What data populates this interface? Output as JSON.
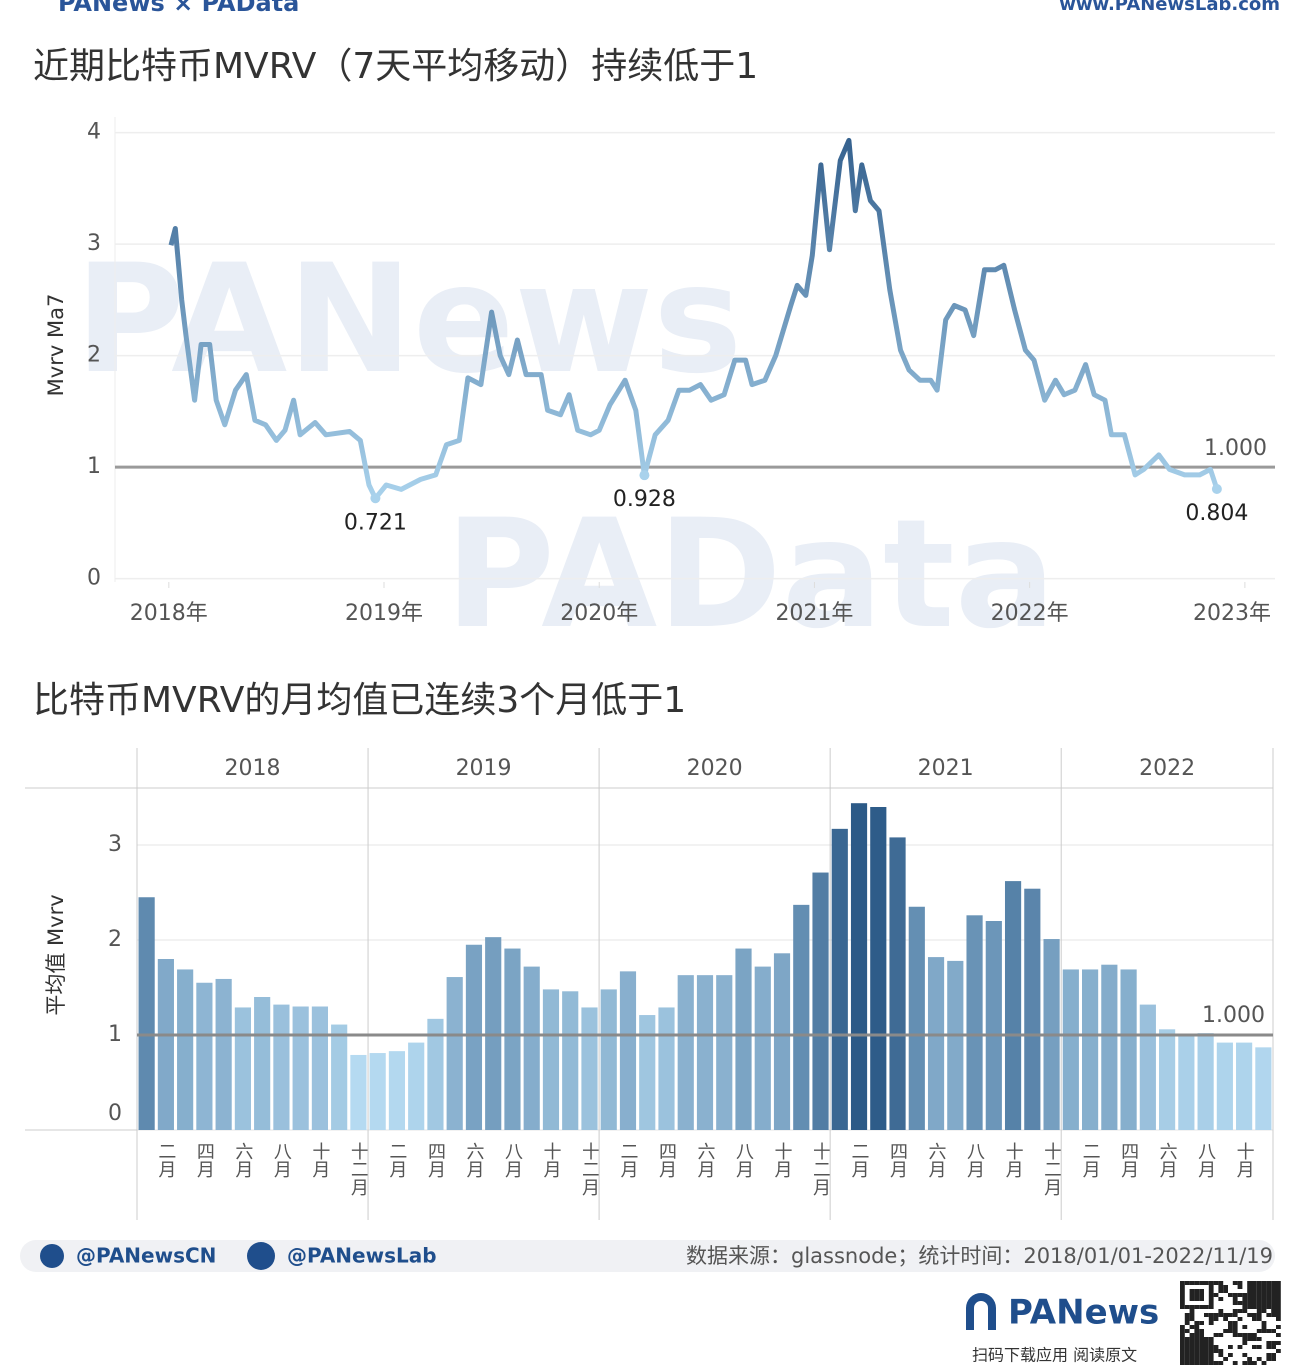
{
  "header": {
    "brand": "PANews × PAData",
    "site": "www.PANewsLab.com"
  },
  "watermarks": [
    "PANews",
    "PAData"
  ],
  "chart_data": [
    {
      "type": "line",
      "title": "近期比特币MVRV（7天平均移动）持续低于1",
      "y_label": "Mvrv Ma7",
      "xlim": [
        2017.75,
        2023.14
      ],
      "ylim": [
        -0.03,
        4.14
      ],
      "xticks": [
        {
          "value": 2018,
          "label": "2018年"
        },
        {
          "value": 2019,
          "label": "2019年"
        },
        {
          "value": 2020,
          "label": "2020年"
        },
        {
          "value": 2021,
          "label": "2021年"
        },
        {
          "value": 2022,
          "label": "2022年"
        },
        {
          "value": 2023,
          "label": "2023年"
        }
      ],
      "yticks": [
        0,
        1,
        2,
        3,
        4
      ],
      "grid": true,
      "color_range": [
        "#a9d2ec",
        "#36628f"
      ],
      "x": [
        2018.01,
        2018.03,
        2018.06,
        2018.08,
        2018.12,
        2018.15,
        2018.19,
        2018.22,
        2018.26,
        2018.31,
        2018.36,
        2018.4,
        2018.45,
        2018.5,
        2018.54,
        2018.58,
        2018.61,
        2018.68,
        2018.73,
        2018.84,
        2018.89,
        2018.93,
        2018.96,
        2019.01,
        2019.08,
        2019.17,
        2019.24,
        2019.29,
        2019.35,
        2019.39,
        2019.45,
        2019.5,
        2019.54,
        2019.58,
        2019.62,
        2019.66,
        2019.73,
        2019.76,
        2019.82,
        2019.86,
        2019.9,
        2019.96,
        2020.0,
        2020.05,
        2020.12,
        2020.17,
        2020.21,
        2020.26,
        2020.32,
        2020.37,
        2020.42,
        2020.47,
        2020.52,
        2020.58,
        2020.63,
        2020.68,
        2020.71,
        2020.77,
        2020.82,
        2020.89,
        2020.92,
        2020.96,
        2020.99,
        2021.03,
        2021.07,
        2021.12,
        2021.16,
        2021.19,
        2021.22,
        2021.26,
        2021.3,
        2021.35,
        2021.4,
        2021.44,
        2021.49,
        2021.54,
        2021.57,
        2021.61,
        2021.65,
        2021.7,
        2021.74,
        2021.79,
        2021.84,
        2021.88,
        2021.93,
        2021.98,
        2022.02,
        2022.07,
        2022.12,
        2022.16,
        2022.21,
        2022.26,
        2022.3,
        2022.35,
        2022.38,
        2022.44,
        2022.49,
        2022.53,
        2022.6,
        2022.65,
        2022.72,
        2022.79,
        2022.84,
        2022.87
      ],
      "values": [
        2.99,
        3.14,
        2.5,
        2.18,
        1.6,
        2.1,
        2.1,
        1.6,
        1.38,
        1.69,
        1.83,
        1.42,
        1.38,
        1.24,
        1.33,
        1.6,
        1.29,
        1.4,
        1.29,
        1.32,
        1.24,
        0.84,
        0.721,
        0.84,
        0.8,
        0.89,
        0.93,
        1.2,
        1.24,
        1.8,
        1.74,
        2.39,
        2.0,
        1.83,
        2.14,
        1.83,
        1.83,
        1.51,
        1.47,
        1.65,
        1.33,
        1.29,
        1.33,
        1.56,
        1.78,
        1.51,
        0.928,
        1.29,
        1.42,
        1.69,
        1.69,
        1.74,
        1.6,
        1.65,
        1.96,
        1.96,
        1.74,
        1.78,
        2.0,
        2.45,
        2.63,
        2.54,
        2.9,
        3.71,
        2.95,
        3.75,
        3.93,
        3.3,
        3.71,
        3.39,
        3.3,
        2.59,
        2.05,
        1.87,
        1.78,
        1.78,
        1.69,
        2.32,
        2.45,
        2.41,
        2.18,
        2.77,
        2.77,
        2.81,
        2.41,
        2.05,
        1.96,
        1.6,
        1.78,
        1.65,
        1.69,
        1.92,
        1.65,
        1.6,
        1.29,
        1.29,
        0.93,
        0.98,
        1.11,
        0.98,
        0.93,
        0.93,
        0.98,
        0.804
      ],
      "annotations": [
        {
          "x": 2018.96,
          "y": 0.721
        },
        {
          "x": 2020.21,
          "y": 0.928
        },
        {
          "x": 2022.87,
          "y": 0.804
        }
      ],
      "ref_line": {
        "value": 1,
        "label": "1.000"
      }
    },
    {
      "type": "bar",
      "title": "比特币MVRV的月均值已连续3个月低于1",
      "y_label": "平均值 Mvrv",
      "ylim": [
        0,
        3.6
      ],
      "yticks": [
        0,
        1,
        2,
        3
      ],
      "grid": true,
      "color_range": [
        "#b5daf1",
        "#2c5a87"
      ],
      "facets": [
        {
          "name": "2018",
          "categories": [
            null,
            "二月",
            null,
            "四月",
            null,
            "六月",
            null,
            "八月",
            null,
            "十月",
            null,
            "十二月"
          ],
          "values": [
            2.45,
            1.8,
            1.69,
            1.55,
            1.59,
            1.29,
            1.4,
            1.32,
            1.3,
            1.3,
            1.11,
            0.79
          ]
        },
        {
          "name": "2019",
          "categories": [
            null,
            "二月",
            null,
            "四月",
            null,
            "六月",
            null,
            "八月",
            null,
            "十月",
            null,
            "十二月"
          ],
          "values": [
            0.81,
            0.83,
            0.92,
            1.17,
            1.61,
            1.95,
            2.03,
            1.91,
            1.72,
            1.48,
            1.46,
            1.29
          ]
        },
        {
          "name": "2020",
          "categories": [
            null,
            "二月",
            null,
            "四月",
            null,
            "六月",
            null,
            "八月",
            null,
            "十月",
            null,
            "十二月"
          ],
          "values": [
            1.48,
            1.67,
            1.21,
            1.29,
            1.63,
            1.63,
            1.63,
            1.91,
            1.72,
            1.86,
            2.37,
            2.71
          ]
        },
        {
          "name": "2021",
          "categories": [
            null,
            "二月",
            null,
            "四月",
            null,
            "六月",
            null,
            "八月",
            null,
            "十月",
            null,
            "十二月"
          ],
          "values": [
            3.17,
            3.44,
            3.4,
            3.08,
            2.35,
            1.82,
            1.78,
            2.26,
            2.2,
            2.62,
            2.54,
            2.01
          ]
        },
        {
          "name": "2022",
          "categories": [
            null,
            "二月",
            null,
            "四月",
            null,
            "六月",
            null,
            "八月",
            null,
            "十月",
            null
          ],
          "values": [
            1.69,
            1.69,
            1.74,
            1.69,
            1.32,
            1.06,
            1.0,
            1.02,
            0.92,
            0.92,
            0.87
          ]
        }
      ],
      "ref_line": {
        "value": 1,
        "label": "1.000"
      }
    }
  ],
  "footer": {
    "twitter": "@PANewsCN",
    "facebook": "@PANewsLab",
    "source": "数据来源：glassnode；统计时间：2018/01/01-2022/11/19",
    "logo": "PANews",
    "cta": "扫码下载应用 阅读原文"
  }
}
